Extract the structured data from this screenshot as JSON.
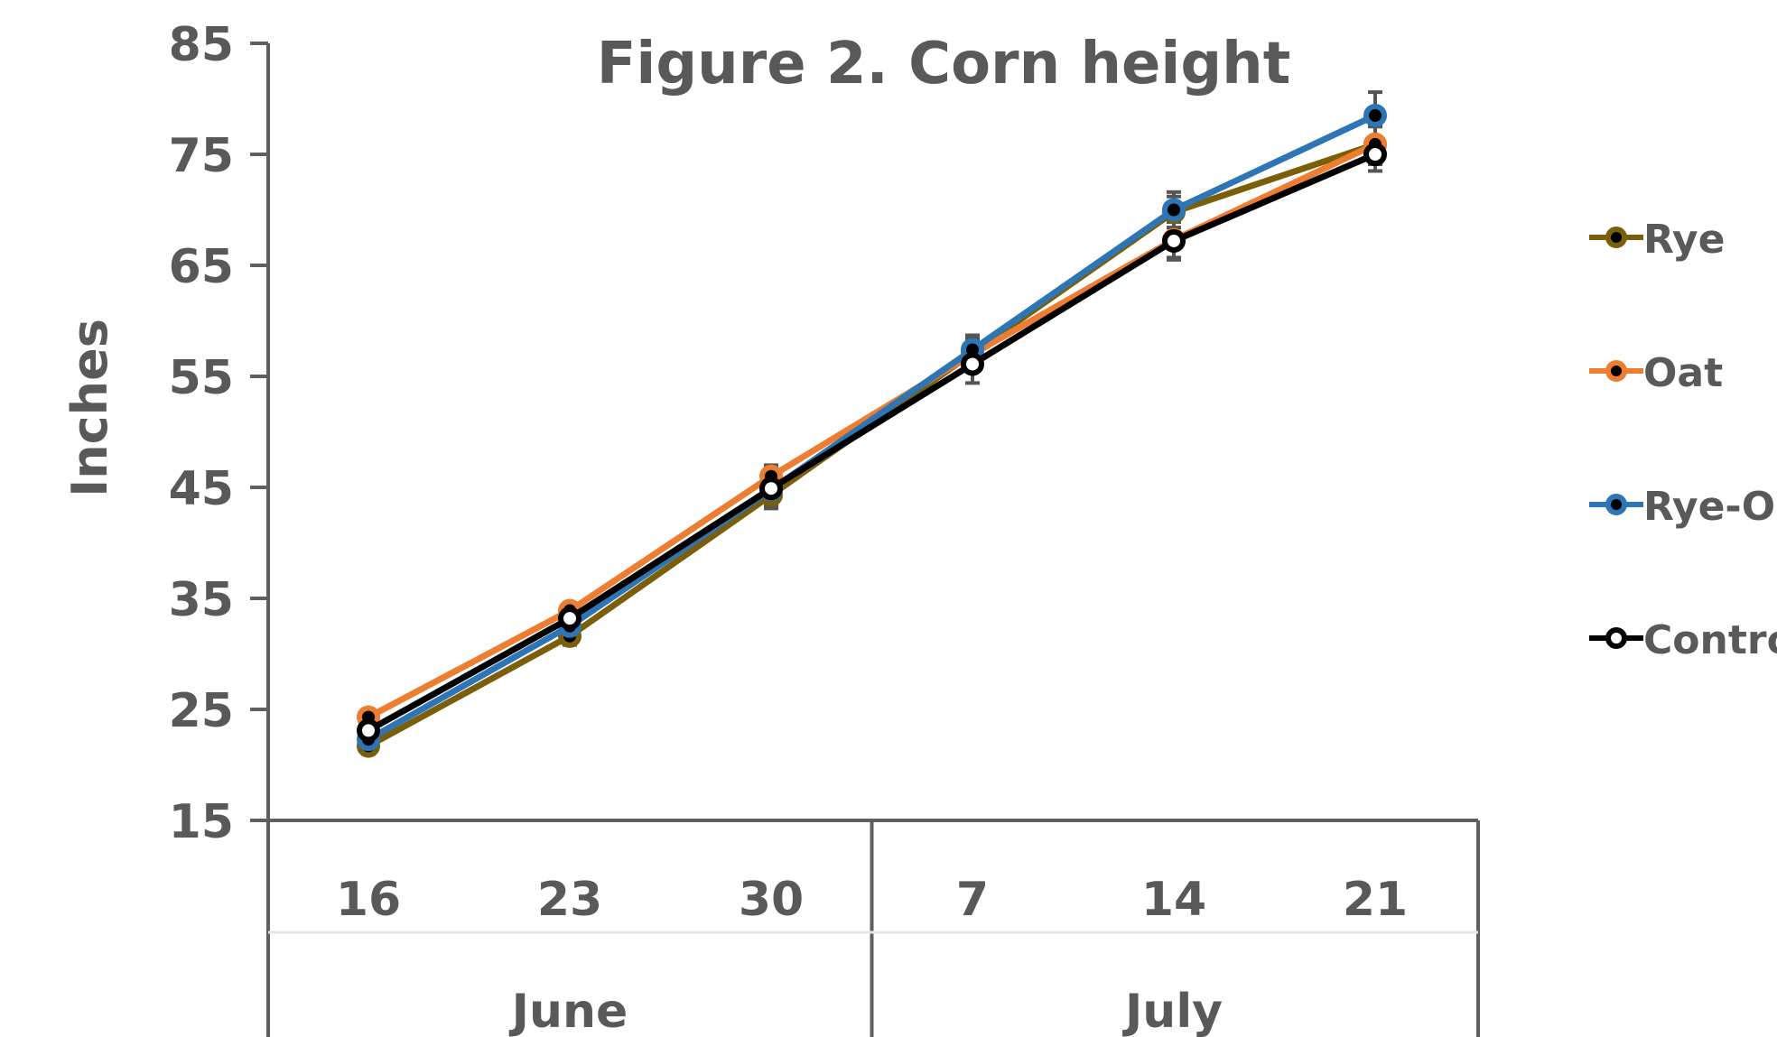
{
  "chart_data": {
    "type": "line",
    "title": "Figure 2. Corn height",
    "ylabel": "Inches",
    "xlabel": "",
    "ylim": [
      15,
      85
    ],
    "y_ticks": [
      15,
      25,
      35,
      45,
      55,
      65,
      75,
      85
    ],
    "categories": [
      "16",
      "23",
      "30",
      "7",
      "14",
      "21"
    ],
    "category_groups": [
      {
        "label": "June",
        "categories": [
          "16",
          "23",
          "30"
        ]
      },
      {
        "label": "July",
        "categories": [
          "7",
          "14",
          "21"
        ]
      }
    ],
    "grid": false,
    "legend_position": "right",
    "series": [
      {
        "name": "Rye",
        "color": "#7a5e0a",
        "marker_fill": "#000000",
        "values": [
          21.7,
          31.6,
          44.3,
          57.1,
          69.8,
          75.9
        ],
        "error": [
          0.7,
          0.8,
          1.2,
          1.3,
          1.4,
          1.8
        ]
      },
      {
        "name": "Oat",
        "color": "#ed7d31",
        "marker_fill": "#000000",
        "values": [
          24.3,
          33.9,
          46.0,
          57.0,
          67.3,
          75.9
        ],
        "error": [
          0.6,
          0.7,
          1.0,
          1.3,
          1.6,
          1.6
        ]
      },
      {
        "name": "Rye-Oat",
        "color": "#2e75b6",
        "marker_fill": "#000000",
        "values": [
          22.3,
          32.5,
          44.8,
          57.4,
          70.0,
          78.5
        ],
        "error": [
          0.6,
          0.8,
          1.2,
          1.3,
          1.6,
          2.1
        ]
      },
      {
        "name": "Control",
        "color": "#000000",
        "marker_fill": "#ffffff",
        "values": [
          23.1,
          33.2,
          44.9,
          56.1,
          67.2,
          75.0
        ],
        "error": [
          0.8,
          0.8,
          1.5,
          1.7,
          1.7,
          1.5
        ]
      }
    ]
  }
}
